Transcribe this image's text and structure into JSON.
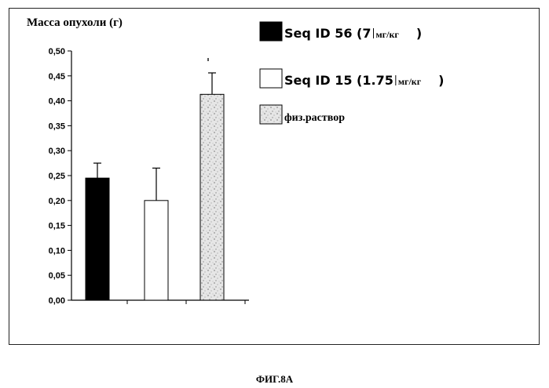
{
  "figure": {
    "caption": "ФИГ.8А"
  },
  "chart_data": {
    "type": "bar",
    "title": "Масса опухоли (г)",
    "xlabel": "",
    "ylabel": "",
    "ylim": [
      0,
      0.5
    ],
    "y_tick_step": 0.05,
    "y_tick_labels": [
      "0,00",
      "0,05",
      "0,10",
      "0,15",
      "0,20",
      "0,25",
      "0,30",
      "0,35",
      "0,40",
      "0,45",
      "0,50"
    ],
    "grid": false,
    "legend_position": "right",
    "series": [
      {
        "name": "Seq ID 56 (7",
        "unit": "мг/кг",
        "close": ")",
        "value": 0.245,
        "error": 0.03,
        "fill": "#000000",
        "pattern": "solid"
      },
      {
        "name": "Seq ID 15 (1.75",
        "unit": "мг/кг",
        "close": ")",
        "value": 0.2,
        "error": 0.065,
        "fill": "#ffffff",
        "pattern": "solid"
      },
      {
        "name": "физ.раствор",
        "unit": "",
        "close": "",
        "value": 0.413,
        "error": 0.043,
        "fill": "#d9d9d9",
        "pattern": "speckled"
      }
    ]
  }
}
